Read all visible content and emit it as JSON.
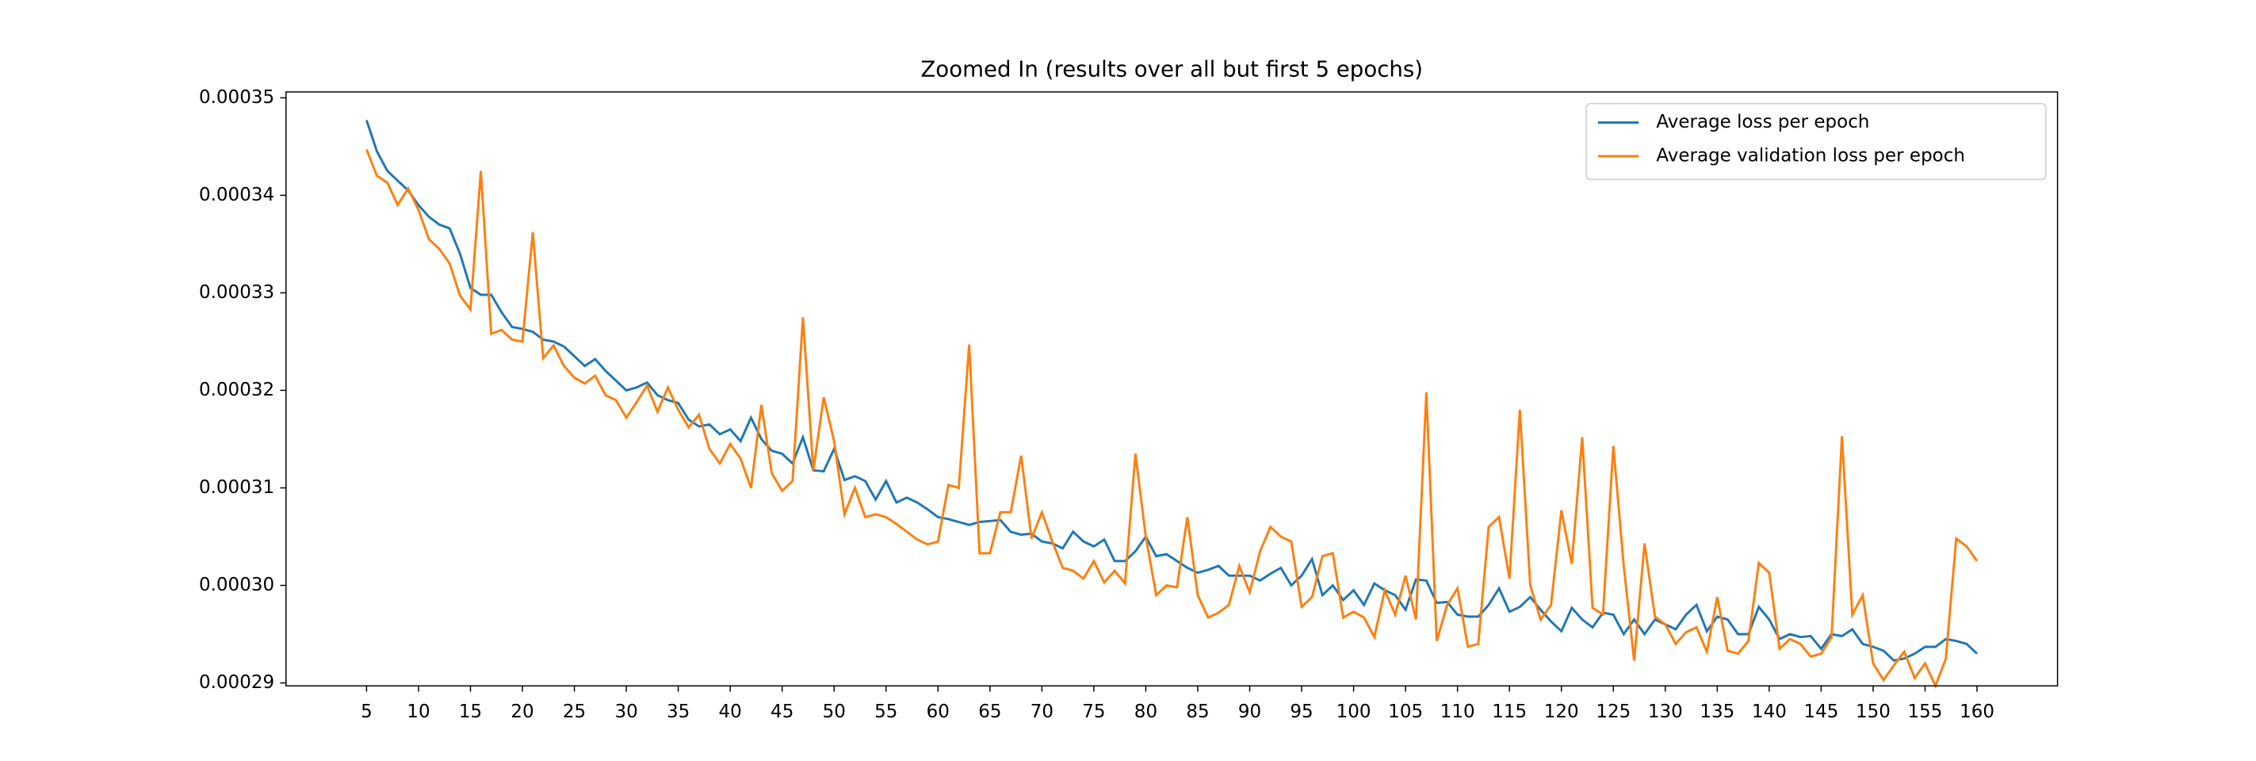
{
  "chart_data": {
    "type": "line",
    "title": "Zoomed In (results over all but first 5 epochs)",
    "x": [
      5,
      6,
      7,
      8,
      9,
      10,
      11,
      12,
      13,
      14,
      15,
      16,
      17,
      18,
      19,
      20,
      21,
      22,
      23,
      24,
      25,
      26,
      27,
      28,
      29,
      30,
      31,
      32,
      33,
      34,
      35,
      36,
      37,
      38,
      39,
      40,
      41,
      42,
      43,
      44,
      45,
      46,
      47,
      48,
      49,
      50,
      51,
      52,
      53,
      54,
      55,
      56,
      57,
      58,
      59,
      60,
      61,
      62,
      63,
      64,
      65,
      66,
      67,
      68,
      69,
      70,
      71,
      72,
      73,
      74,
      75,
      76,
      77,
      78,
      79,
      80,
      81,
      82,
      83,
      84,
      85,
      86,
      87,
      88,
      89,
      90,
      91,
      92,
      93,
      94,
      95,
      96,
      97,
      98,
      99,
      100,
      101,
      102,
      103,
      104,
      105,
      106,
      107,
      108,
      109,
      110,
      111,
      112,
      113,
      114,
      115,
      116,
      117,
      118,
      119,
      120,
      121,
      122,
      123,
      124,
      125,
      126,
      127,
      128,
      129,
      130,
      131,
      132,
      133,
      134,
      135,
      136,
      137,
      138,
      139,
      140,
      141,
      142,
      143,
      144,
      145,
      146,
      147,
      148,
      149,
      150,
      151,
      152,
      153,
      154,
      155,
      156,
      157,
      158,
      159,
      160
    ],
    "series": [
      {
        "name": "Average loss per epoch",
        "color": "#1f77b4",
        "values": [
          0.0003477,
          0.0003445,
          0.0003425,
          0.0003415,
          0.0003405,
          0.000339,
          0.0003378,
          0.000337,
          0.0003366,
          0.000334,
          0.0003305,
          0.0003298,
          0.0003298,
          0.000328,
          0.0003265,
          0.0003263,
          0.000326,
          0.0003252,
          0.000325,
          0.0003245,
          0.0003235,
          0.0003225,
          0.0003232,
          0.000322,
          0.000321,
          0.00032,
          0.0003203,
          0.0003208,
          0.0003195,
          0.000319,
          0.0003187,
          0.000317,
          0.0003163,
          0.0003165,
          0.0003155,
          0.000316,
          0.0003148,
          0.0003172,
          0.000315,
          0.0003138,
          0.0003135,
          0.0003125,
          0.0003152,
          0.0003118,
          0.0003117,
          0.000314,
          0.0003108,
          0.0003112,
          0.0003107,
          0.0003088,
          0.0003107,
          0.0003085,
          0.000309,
          0.0003085,
          0.0003078,
          0.000307,
          0.0003068,
          0.0003065,
          0.0003062,
          0.0003065,
          0.0003066,
          0.0003067,
          0.0003055,
          0.0003052,
          0.0003053,
          0.0003045,
          0.0003043,
          0.0003038,
          0.0003055,
          0.0003045,
          0.000304,
          0.0003047,
          0.0003025,
          0.0003025,
          0.0003035,
          0.000305,
          0.000303,
          0.0003032,
          0.0003025,
          0.0003018,
          0.0003013,
          0.0003016,
          0.000302,
          0.000301,
          0.000301,
          0.000301,
          0.0003005,
          0.0003012,
          0.0003018,
          0.0003,
          0.000301,
          0.0003027,
          0.000299,
          0.0003,
          0.0002985,
          0.0002995,
          0.000298,
          0.0003002,
          0.0002995,
          0.000299,
          0.0002975,
          0.0003006,
          0.0003005,
          0.0002982,
          0.0002983,
          0.000297,
          0.0002968,
          0.0002968,
          0.000298,
          0.0002997,
          0.0002973,
          0.0002978,
          0.0002988,
          0.0002975,
          0.0002963,
          0.0002953,
          0.0002977,
          0.0002965,
          0.0002957,
          0.0002972,
          0.000297,
          0.000295,
          0.0002965,
          0.000295,
          0.0002965,
          0.000296,
          0.0002955,
          0.000297,
          0.000298,
          0.0002953,
          0.0002968,
          0.0002965,
          0.000295,
          0.000295,
          0.0002978,
          0.0002965,
          0.0002945,
          0.000295,
          0.0002947,
          0.0002948,
          0.0002935,
          0.000295,
          0.0002948,
          0.0002955,
          0.000294,
          0.0002937,
          0.0002933,
          0.0002923,
          0.0002925,
          0.000293,
          0.0002937,
          0.0002937,
          0.0002945,
          0.0002943,
          0.000294,
          0.000293
        ]
      },
      {
        "name": "Average validation loss per epoch",
        "color": "#ff7f0e",
        "values": [
          0.0003447,
          0.000342,
          0.0003413,
          0.000339,
          0.0003407,
          0.0003385,
          0.0003355,
          0.0003345,
          0.000333,
          0.0003297,
          0.0003283,
          0.0003425,
          0.0003258,
          0.0003262,
          0.0003252,
          0.000325,
          0.0003362,
          0.0003233,
          0.0003246,
          0.0003225,
          0.0003213,
          0.0003207,
          0.0003215,
          0.0003195,
          0.000319,
          0.0003172,
          0.0003188,
          0.0003205,
          0.0003178,
          0.0003203,
          0.000318,
          0.0003162,
          0.0003175,
          0.000314,
          0.0003125,
          0.0003145,
          0.000313,
          0.00031,
          0.0003185,
          0.0003115,
          0.0003097,
          0.0003107,
          0.0003275,
          0.0003118,
          0.0003193,
          0.0003148,
          0.0003073,
          0.00031,
          0.000307,
          0.0003073,
          0.000307,
          0.0003063,
          0.0003055,
          0.0003047,
          0.0003042,
          0.0003045,
          0.0003103,
          0.00031,
          0.0003247,
          0.0003033,
          0.0003033,
          0.0003075,
          0.0003075,
          0.0003133,
          0.0003048,
          0.0003075,
          0.0003045,
          0.0003018,
          0.0003015,
          0.0003007,
          0.0003025,
          0.0003003,
          0.0003015,
          0.0003002,
          0.0003135,
          0.000305,
          0.000299,
          0.0003,
          0.0002998,
          0.000307,
          0.000299,
          0.0002967,
          0.0002972,
          0.000298,
          0.000302,
          0.0002993,
          0.0003035,
          0.000306,
          0.000305,
          0.0003045,
          0.0002978,
          0.0002988,
          0.000303,
          0.0003033,
          0.0002967,
          0.0002973,
          0.0002967,
          0.0002947,
          0.0002995,
          0.000297,
          0.000301,
          0.0002965,
          0.0003198,
          0.0002943,
          0.000298,
          0.0002997,
          0.0002937,
          0.000294,
          0.000306,
          0.000307,
          0.0003007,
          0.000318,
          0.0003,
          0.0002965,
          0.000298,
          0.0003077,
          0.0003022,
          0.0003152,
          0.0002977,
          0.000297,
          0.0003143,
          0.000302,
          0.0002923,
          0.0003043,
          0.0002968,
          0.000296,
          0.000294,
          0.0002952,
          0.0002957,
          0.0002932,
          0.0002988,
          0.0002933,
          0.000293,
          0.0002943,
          0.0003023,
          0.0003013,
          0.0002935,
          0.0002945,
          0.000294,
          0.0002927,
          0.000293,
          0.0002947,
          0.0003153,
          0.000297,
          0.000299,
          0.000292,
          0.0002903,
          0.0002918,
          0.0002932,
          0.0002905,
          0.000292,
          0.0002897,
          0.0002925,
          0.0003048,
          0.000304,
          0.0003025
        ]
      }
    ],
    "xlim": [
      -2.75,
      167.75
    ],
    "xticks": [
      5,
      10,
      15,
      20,
      25,
      30,
      35,
      40,
      45,
      50,
      55,
      60,
      65,
      70,
      75,
      80,
      85,
      90,
      95,
      100,
      105,
      110,
      115,
      120,
      125,
      130,
      135,
      140,
      145,
      150,
      155,
      160
    ],
    "ylim": [
      0.0002897,
      0.0003506
    ],
    "yticks": [
      0.00029,
      {
        "value": 0.0003,
        "label": "0.00030"
      },
      0.00031,
      0.00032,
      0.00033,
      0.00034,
      0.00035
    ],
    "legend": "upper right"
  }
}
